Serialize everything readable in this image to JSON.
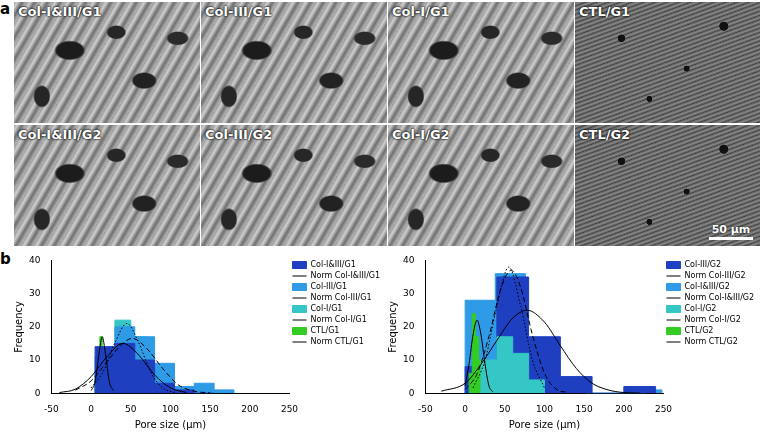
{
  "panel_a": {
    "label": "a",
    "images": [
      "Col-I&III/G1",
      "Col-III/G1",
      "Col-I/G1",
      "CTL/G1",
      "Col-I&III/G2",
      "Col-III/G2",
      "Col-I/G2",
      "CTL/G2"
    ],
    "scale_bar": "50 µm"
  },
  "panel_b": {
    "label": "b"
  },
  "chart_data": [
    {
      "type": "histogram",
      "x_label": "Pore size (µm)",
      "y_label": "Frequency",
      "xlim": [
        -50,
        250
      ],
      "xticks": [
        -50,
        0,
        50,
        100,
        150,
        200,
        250
      ],
      "ylim": [
        0,
        40
      ],
      "yticks": [
        0,
        10,
        20,
        30,
        40
      ],
      "grid": false,
      "legend": "right",
      "series": [
        {
          "name": "Col-I&III/G1",
          "type": "histogram",
          "color": "#1e3fc0",
          "bins": [
            5,
            30,
            55,
            80,
            105,
            130,
            155
          ],
          "counts": [
            14,
            15,
            10,
            3,
            1,
            0
          ]
        },
        {
          "name": "Norm Col-I&III/G1",
          "type": "line",
          "color": "#000000",
          "line_style": "solid",
          "x": [
            -40,
            -20,
            0,
            20,
            40,
            60,
            80,
            100,
            120
          ],
          "values": [
            0.2,
            1.2,
            5,
            11,
            15,
            11.5,
            5.5,
            1.6,
            0.2
          ]
        },
        {
          "name": "Col-III/G1",
          "type": "histogram",
          "color": "#2f9be6",
          "bins": [
            5,
            30,
            55,
            80,
            105,
            130,
            155,
            180
          ],
          "counts": [
            11,
            20,
            17,
            9,
            2,
            3,
            1
          ]
        },
        {
          "name": "Norm Col-III/G1",
          "type": "line",
          "color": "#000000",
          "line_style": "dashed",
          "x": [
            -20,
            0,
            20,
            40,
            52,
            70,
            90,
            110,
            130,
            150
          ],
          "values": [
            0.9,
            3.7,
            9.5,
            15,
            16.5,
            13.5,
            7.5,
            2.5,
            0.6,
            0.1
          ]
        },
        {
          "name": "Col-I/G1",
          "type": "histogram",
          "color": "#35c6c6",
          "bins": [
            10,
            30,
            50,
            70,
            90
          ],
          "counts": [
            14,
            22,
            17,
            5
          ]
        },
        {
          "name": "Norm Col-I/G1",
          "type": "line",
          "color": "#000000",
          "line_style": "dotted",
          "x": [
            0,
            15,
            30,
            45,
            60,
            75,
            90,
            105
          ],
          "values": [
            1.6,
            6.4,
            15.2,
            21,
            15.2,
            6.4,
            1.6,
            0.2
          ]
        },
        {
          "name": "CTL/G1",
          "type": "histogram",
          "color": "#33cc22",
          "bins": [
            5,
            8,
            11,
            14,
            17,
            20,
            23,
            26
          ],
          "counts": [
            4,
            10,
            17,
            8,
            5,
            3,
            1
          ]
        },
        {
          "name": "Norm CTL/G1",
          "type": "line",
          "color": "#000000",
          "line_style": "solid",
          "x": [
            0,
            5,
            10,
            14,
            18,
            23,
            28
          ],
          "values": [
            0.8,
            3.4,
            12,
            17,
            12,
            3.4,
            0.8
          ]
        }
      ]
    },
    {
      "type": "histogram",
      "x_label": "Pore size (µm)",
      "y_label": "Frequency",
      "xlim": [
        -50,
        250
      ],
      "xticks": [
        -50,
        0,
        50,
        100,
        150,
        200,
        250
      ],
      "ylim": [
        0,
        40
      ],
      "yticks": [
        0,
        10,
        20,
        30,
        40
      ],
      "grid": false,
      "legend": "right",
      "series": [
        {
          "name": "Col-III/G2",
          "type": "histogram",
          "color": "#1e3fc0",
          "bins": [
            0,
            40,
            80,
            120,
            160,
            200,
            240
          ],
          "counts": [
            8,
            35,
            17,
            5,
            0,
            2
          ]
        },
        {
          "name": "Norm Col-III/G2",
          "type": "line",
          "color": "#000000",
          "line_style": "solid",
          "x": [
            -30,
            0,
            20,
            40,
            60,
            78,
            100,
            120,
            140,
            160,
            180,
            200,
            220
          ],
          "values": [
            0.6,
            3,
            8.7,
            15.9,
            22.6,
            25,
            21.4,
            14.3,
            7.5,
            3,
            1,
            0.2,
            0.05
          ]
        },
        {
          "name": "Col-I&III/G2",
          "type": "histogram",
          "color": "#2f9be6",
          "bins": [
            0,
            38,
            76,
            114,
            152,
            190,
            228,
            248
          ],
          "counts": [
            28,
            36,
            7,
            2,
            0,
            0,
            1
          ]
        },
        {
          "name": "Norm Col-I&III/G2",
          "type": "line",
          "color": "#000000",
          "line_style": "dashed",
          "x": [
            0,
            15,
            30,
            45,
            58,
            70,
            85,
            100,
            115,
            130
          ],
          "values": [
            1.15,
            5.8,
            17.1,
            31.5,
            37,
            31.9,
            17.4,
            6,
            1.2,
            0.2
          ]
        },
        {
          "name": "Col-I/G2",
          "type": "histogram",
          "color": "#35c6c6",
          "bins": [
            20,
            40,
            60,
            80,
            100
          ],
          "counts": [
            10,
            17,
            12,
            4
          ]
        },
        {
          "name": "Norm Col-I/G2",
          "type": "line",
          "color": "#000000",
          "line_style": "dotted",
          "x": [
            10,
            25,
            40,
            55,
            70,
            85,
            100
          ],
          "values": [
            1.6,
            9.8,
            26.2,
            38,
            26.2,
            9.8,
            1.6
          ]
        },
        {
          "name": "CTL/G2",
          "type": "histogram",
          "color": "#33cc22",
          "bins": [
            5,
            9,
            13,
            17,
            21,
            25,
            29
          ],
          "counts": [
            6,
            24,
            17,
            10,
            6,
            3
          ]
        },
        {
          "name": "Norm CTL/G2",
          "type": "line",
          "color": "#000000",
          "line_style": "solid",
          "x": [
            0,
            5,
            10,
            15,
            20,
            25,
            30,
            35
          ],
          "values": [
            2.2,
            8.9,
            17.6,
            22,
            17.6,
            8.9,
            2.2,
            0.4
          ]
        }
      ]
    }
  ]
}
